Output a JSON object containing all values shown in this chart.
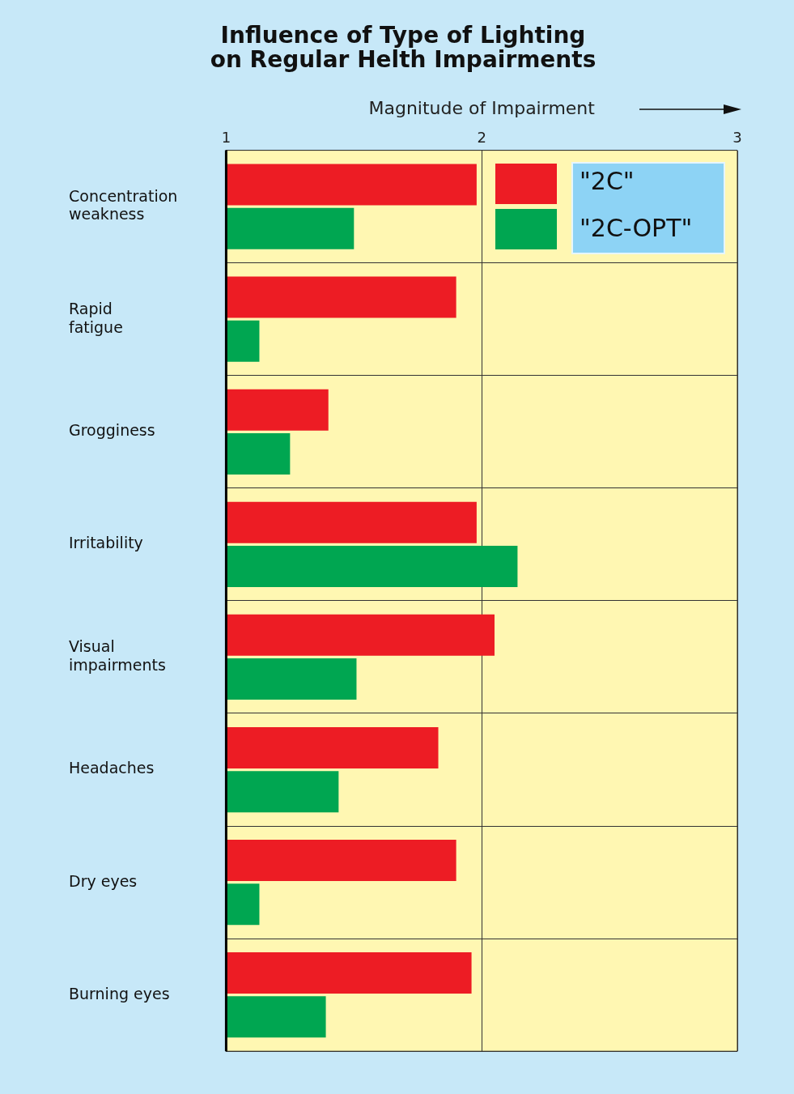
{
  "chart_data": {
    "type": "bar",
    "orientation": "horizontal",
    "title": "Influence of Type of Lighting\non Regular Helth Impairments",
    "xlabel": "Magnitude of Impairment",
    "categories": [
      "Concentration weakness",
      "Rapid fatigue",
      "Grogginess",
      "Irritability",
      "Visual impairments",
      "Headaches",
      "Dry eyes",
      "Burning eyes"
    ],
    "series": [
      {
        "name": "\"2C\"",
        "color": "#ed1c24",
        "values": [
          1.98,
          1.9,
          1.4,
          1.98,
          2.05,
          1.83,
          1.9,
          1.96
        ]
      },
      {
        "name": "\"2C-OPT\"",
        "color": "#00a651",
        "values": [
          1.5,
          1.13,
          1.25,
          2.14,
          1.51,
          1.44,
          1.13,
          1.39
        ]
      }
    ],
    "xlim": [
      1,
      3
    ],
    "xticks": [
      1,
      2,
      3
    ],
    "grid": true,
    "legend": "top right"
  }
}
